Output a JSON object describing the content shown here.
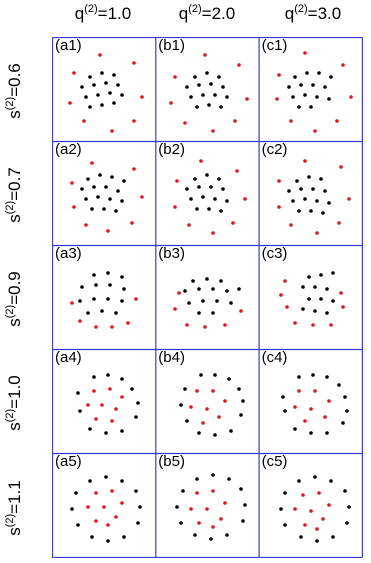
{
  "columns": [
    {
      "pre": "q",
      "sup": "(2)",
      "post": "=1.0"
    },
    {
      "pre": "q",
      "sup": "(2)",
      "post": "=2.0"
    },
    {
      "pre": "q",
      "sup": "(2)",
      "post": "=3.0"
    }
  ],
  "rows": [
    {
      "pre": "s",
      "sup": "(2)",
      "post": "=0.6"
    },
    {
      "pre": "s",
      "sup": "(2)",
      "post": "=0.7"
    },
    {
      "pre": "s",
      "sup": "(2)",
      "post": "=0.9"
    },
    {
      "pre": "s",
      "sup": "(2)",
      "post": "=1.0"
    },
    {
      "pre": "s",
      "sup": "(2)",
      "post": "=1.1"
    }
  ],
  "colors": {
    "grid_line": "#3b3bd6",
    "black_particle": "#000000",
    "red_particle": "#e8141b"
  },
  "cells": [
    [
      {
        "label": "(a1)",
        "black": [
          [
            38,
            40
          ],
          [
            50,
            36
          ],
          [
            62,
            38
          ],
          [
            30,
            50
          ],
          [
            42,
            48
          ],
          [
            54,
            46
          ],
          [
            66,
            48
          ],
          [
            34,
            60
          ],
          [
            46,
            58
          ],
          [
            58,
            56
          ],
          [
            70,
            58
          ],
          [
            38,
            70
          ],
          [
            50,
            68
          ],
          [
            62,
            66
          ]
        ],
        "red": [
          [
            48,
            18
          ],
          [
            82,
            26
          ],
          [
            22,
            36
          ],
          [
            90,
            60
          ],
          [
            18,
            66
          ],
          [
            32,
            84
          ],
          [
            82,
            84
          ],
          [
            60,
            94
          ]
        ]
      },
      {
        "label": "(b1)",
        "black": [
          [
            40,
            40
          ],
          [
            52,
            36
          ],
          [
            64,
            40
          ],
          [
            32,
            50
          ],
          [
            44,
            48
          ],
          [
            56,
            47
          ],
          [
            68,
            50
          ],
          [
            36,
            60
          ],
          [
            48,
            58
          ],
          [
            60,
            58
          ],
          [
            72,
            60
          ],
          [
            42,
            70
          ],
          [
            54,
            68
          ],
          [
            66,
            70
          ]
        ],
        "red": [
          [
            50,
            18
          ],
          [
            84,
            28
          ],
          [
            20,
            40
          ],
          [
            92,
            62
          ],
          [
            16,
            66
          ],
          [
            30,
            86
          ],
          [
            80,
            84
          ],
          [
            58,
            94
          ]
        ]
      },
      {
        "label": "(c1)",
        "black": [
          [
            36,
            40
          ],
          [
            48,
            36
          ],
          [
            60,
            36
          ],
          [
            72,
            40
          ],
          [
            30,
            50
          ],
          [
            42,
            48
          ],
          [
            54,
            48
          ],
          [
            66,
            50
          ],
          [
            34,
            60
          ],
          [
            46,
            58
          ],
          [
            58,
            60
          ],
          [
            70,
            62
          ],
          [
            40,
            70
          ],
          [
            52,
            70
          ]
        ],
        "red": [
          [
            46,
            16
          ],
          [
            84,
            28
          ],
          [
            20,
            38
          ],
          [
            92,
            60
          ],
          [
            18,
            62
          ],
          [
            32,
            84
          ],
          [
            78,
            84
          ],
          [
            56,
            94
          ]
        ]
      }
    ],
    [
      {
        "label": "(a2)",
        "black": [
          [
            36,
            38
          ],
          [
            48,
            34
          ],
          [
            60,
            36
          ],
          [
            72,
            40
          ],
          [
            30,
            48
          ],
          [
            42,
            46
          ],
          [
            54,
            46
          ],
          [
            66,
            50
          ],
          [
            34,
            58
          ],
          [
            46,
            56
          ],
          [
            58,
            58
          ],
          [
            70,
            60
          ],
          [
            40,
            68
          ],
          [
            52,
            68
          ],
          [
            64,
            70
          ]
        ],
        "red": [
          [
            40,
            22
          ],
          [
            82,
            28
          ],
          [
            20,
            42
          ],
          [
            90,
            56
          ],
          [
            22,
            66
          ],
          [
            34,
            84
          ],
          [
            80,
            82
          ],
          [
            56,
            90
          ]
        ]
      },
      {
        "label": "(b2)",
        "black": [
          [
            40,
            38
          ],
          [
            52,
            34
          ],
          [
            64,
            38
          ],
          [
            32,
            48
          ],
          [
            44,
            46
          ],
          [
            56,
            46
          ],
          [
            68,
            48
          ],
          [
            36,
            58
          ],
          [
            48,
            56
          ],
          [
            60,
            58
          ],
          [
            72,
            60
          ],
          [
            42,
            68
          ],
          [
            54,
            68
          ],
          [
            66,
            70
          ]
        ],
        "red": [
          [
            46,
            20
          ],
          [
            82,
            30
          ],
          [
            22,
            40
          ],
          [
            90,
            58
          ],
          [
            20,
            66
          ],
          [
            34,
            84
          ],
          [
            78,
            82
          ],
          [
            58,
            92
          ]
        ]
      },
      {
        "label": "(c2)",
        "black": [
          [
            38,
            40
          ],
          [
            50,
            36
          ],
          [
            62,
            38
          ],
          [
            30,
            50
          ],
          [
            42,
            48
          ],
          [
            54,
            48
          ],
          [
            66,
            50
          ],
          [
            34,
            60
          ],
          [
            46,
            58
          ],
          [
            58,
            60
          ],
          [
            70,
            62
          ],
          [
            40,
            70
          ],
          [
            52,
            70
          ],
          [
            64,
            72
          ]
        ],
        "red": [
          [
            46,
            20
          ],
          [
            82,
            26
          ],
          [
            20,
            40
          ],
          [
            90,
            58
          ],
          [
            20,
            66
          ],
          [
            32,
            84
          ],
          [
            80,
            82
          ],
          [
            58,
            92
          ]
        ]
      }
    ],
    [
      {
        "label": "(a3)",
        "black": [
          [
            42,
            30
          ],
          [
            56,
            28
          ],
          [
            70,
            32
          ],
          [
            30,
            42
          ],
          [
            44,
            40
          ],
          [
            58,
            40
          ],
          [
            72,
            44
          ],
          [
            28,
            56
          ],
          [
            42,
            54
          ],
          [
            56,
            54
          ],
          [
            70,
            56
          ],
          [
            36,
            68
          ],
          [
            50,
            66
          ],
          [
            64,
            68
          ]
        ],
        "red": [
          [
            20,
            58
          ],
          [
            84,
            54
          ],
          [
            28,
            76
          ],
          [
            44,
            82
          ],
          [
            60,
            82
          ],
          [
            76,
            78
          ]
        ]
      },
      {
        "label": "(b3)",
        "black": [
          [
            38,
            36
          ],
          [
            52,
            34
          ],
          [
            66,
            36
          ],
          [
            30,
            46
          ],
          [
            44,
            44
          ],
          [
            58,
            44
          ],
          [
            72,
            46
          ],
          [
            84,
            44
          ],
          [
            34,
            58
          ],
          [
            48,
            56
          ],
          [
            62,
            56
          ],
          [
            76,
            58
          ],
          [
            44,
            68
          ],
          [
            58,
            68
          ]
        ],
        "red": [
          [
            24,
            48
          ],
          [
            20,
            64
          ],
          [
            86,
            66
          ],
          [
            32,
            80
          ],
          [
            50,
            82
          ],
          [
            70,
            80
          ]
        ]
      },
      {
        "label": "(c3)",
        "black": [
          [
            50,
            32
          ],
          [
            62,
            30
          ],
          [
            74,
            28
          ],
          [
            44,
            42
          ],
          [
            56,
            42
          ],
          [
            68,
            44
          ],
          [
            50,
            54
          ],
          [
            62,
            54
          ],
          [
            74,
            56
          ],
          [
            44,
            64
          ],
          [
            56,
            66
          ],
          [
            68,
            68
          ]
        ],
        "red": [
          [
            26,
            36
          ],
          [
            22,
            50
          ],
          [
            28,
            62
          ],
          [
            84,
            62
          ],
          [
            36,
            78
          ],
          [
            54,
            80
          ],
          [
            72,
            80
          ],
          [
            82,
            48
          ]
        ]
      }
    ],
    [
      {
        "label": "(a4)",
        "black": [
          [
            42,
            28
          ],
          [
            56,
            26
          ],
          [
            70,
            30
          ],
          [
            80,
            40
          ],
          [
            26,
            44
          ],
          [
            86,
            54
          ],
          [
            28,
            62
          ],
          [
            84,
            68
          ],
          [
            38,
            80
          ],
          [
            54,
            84
          ],
          [
            70,
            82
          ]
        ],
        "red": [
          [
            42,
            42
          ],
          [
            58,
            40
          ],
          [
            70,
            48
          ],
          [
            36,
            56
          ],
          [
            50,
            56
          ],
          [
            64,
            60
          ],
          [
            44,
            70
          ],
          [
            60,
            72
          ]
        ]
      },
      {
        "label": "(b4)",
        "black": [
          [
            46,
            26
          ],
          [
            60,
            26
          ],
          [
            74,
            30
          ],
          [
            84,
            40
          ],
          [
            30,
            40
          ],
          [
            88,
            52
          ],
          [
            26,
            56
          ],
          [
            86,
            66
          ],
          [
            32,
            72
          ],
          [
            44,
            84
          ],
          [
            60,
            86
          ],
          [
            76,
            82
          ]
        ],
        "red": [
          [
            42,
            42
          ],
          [
            58,
            42
          ],
          [
            70,
            52
          ],
          [
            36,
            58
          ],
          [
            52,
            60
          ],
          [
            64,
            68
          ],
          [
            48,
            74
          ]
        ]
      },
      {
        "label": "(c4)",
        "black": [
          [
            40,
            28
          ],
          [
            54,
            26
          ],
          [
            68,
            28
          ],
          [
            80,
            36
          ],
          [
            86,
            48
          ],
          [
            24,
            48
          ],
          [
            88,
            62
          ],
          [
            26,
            62
          ],
          [
            84,
            74
          ],
          [
            36,
            80
          ],
          [
            52,
            84
          ],
          [
            68,
            84
          ]
        ],
        "red": [
          [
            40,
            42
          ],
          [
            56,
            42
          ],
          [
            70,
            52
          ],
          [
            36,
            58
          ],
          [
            52,
            60
          ],
          [
            66,
            68
          ],
          [
            46,
            72
          ]
        ]
      }
    ],
    [
      {
        "label": "(a5)",
        "black": [
          [
            38,
            28
          ],
          [
            54,
            24
          ],
          [
            70,
            28
          ],
          [
            84,
            38
          ],
          [
            24,
            40
          ],
          [
            88,
            54
          ],
          [
            20,
            56
          ],
          [
            86,
            70
          ],
          [
            26,
            72
          ],
          [
            40,
            84
          ],
          [
            56,
            88
          ],
          [
            72,
            84
          ]
        ],
        "red": [
          [
            44,
            40
          ],
          [
            60,
            38
          ],
          [
            70,
            50
          ],
          [
            36,
            54
          ],
          [
            52,
            54
          ],
          [
            64,
            64
          ],
          [
            44,
            68
          ],
          [
            56,
            72
          ]
        ]
      },
      {
        "label": "(b5)",
        "black": [
          [
            42,
            26
          ],
          [
            58,
            22
          ],
          [
            74,
            26
          ],
          [
            86,
            36
          ],
          [
            28,
            38
          ],
          [
            90,
            52
          ],
          [
            22,
            54
          ],
          [
            88,
            68
          ],
          [
            26,
            70
          ],
          [
            40,
            82
          ],
          [
            56,
            86
          ],
          [
            72,
            82
          ]
        ],
        "red": [
          [
            42,
            40
          ],
          [
            58,
            38
          ],
          [
            70,
            50
          ],
          [
            36,
            56
          ],
          [
            52,
            56
          ],
          [
            66,
            66
          ],
          [
            44,
            70
          ],
          [
            58,
            74
          ]
        ]
      },
      {
        "label": "(c5)",
        "black": [
          [
            40,
            28
          ],
          [
            56,
            24
          ],
          [
            72,
            28
          ],
          [
            86,
            38
          ],
          [
            26,
            40
          ],
          [
            90,
            54
          ],
          [
            22,
            56
          ],
          [
            88,
            70
          ],
          [
            26,
            72
          ],
          [
            42,
            84
          ],
          [
            58,
            88
          ],
          [
            74,
            84
          ]
        ],
        "red": [
          [
            44,
            42
          ],
          [
            60,
            40
          ],
          [
            70,
            52
          ],
          [
            36,
            56
          ],
          [
            52,
            58
          ],
          [
            64,
            66
          ],
          [
            46,
            72
          ],
          [
            58,
            76
          ]
        ]
      }
    ]
  ]
}
